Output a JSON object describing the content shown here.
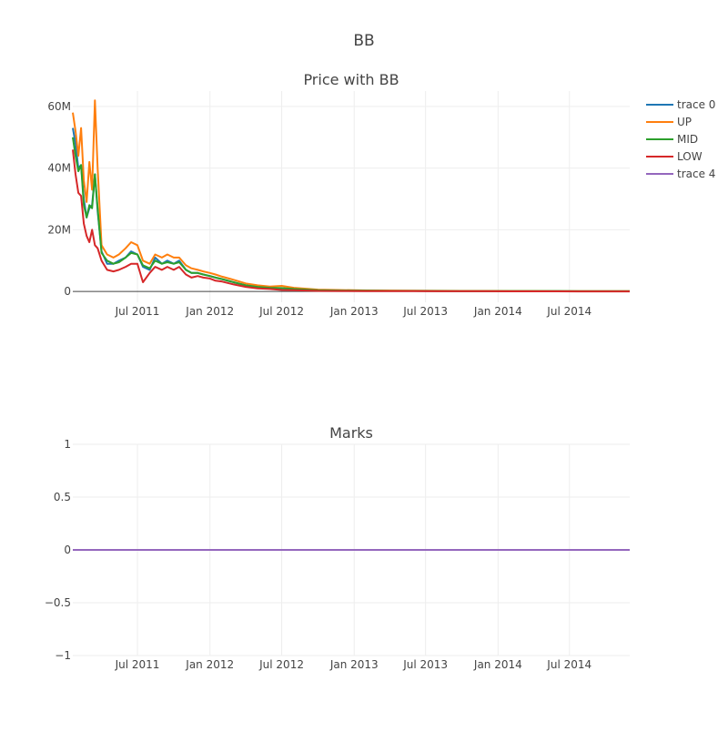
{
  "figure": {
    "title": "BB"
  },
  "chart_data": [
    {
      "type": "line",
      "title": "Price with BB",
      "xlabel": "",
      "ylabel": "",
      "x_tick_labels": [
        "Jul 2011",
        "Jan 2012",
        "Jul 2012",
        "Jan 2013",
        "Jul 2013",
        "Jan 2014",
        "Jul 2014"
      ],
      "x_ticks": [
        "2011-07-01",
        "2012-01-01",
        "2012-07-01",
        "2013-01-01",
        "2013-07-01",
        "2014-01-01",
        "2014-07-01"
      ],
      "xlim": [
        "2011-01-18",
        "2014-12-01"
      ],
      "y_tick_labels": [
        "0",
        "20M",
        "40M",
        "60M"
      ],
      "y_ticks": [
        0,
        20000000,
        40000000,
        60000000
      ],
      "ylim": [
        -3500000,
        65000000
      ],
      "grid": true,
      "legend": "top-right",
      "series": [
        {
          "name": "trace 0",
          "color": "#1f77b4",
          "x": [
            "2011-01-18",
            "2011-01-25",
            "2011-02-01",
            "2011-02-08",
            "2011-02-15",
            "2011-02-22",
            "2011-03-01",
            "2011-03-08",
            "2011-03-15",
            "2011-03-22",
            "2011-04-01",
            "2011-04-15",
            "2011-05-01",
            "2011-05-15",
            "2011-06-01",
            "2011-06-15",
            "2011-07-01",
            "2011-07-15",
            "2011-08-01",
            "2011-08-15",
            "2011-09-01",
            "2011-09-15",
            "2011-10-01",
            "2011-10-15",
            "2011-11-01",
            "2011-11-15",
            "2011-12-01",
            "2011-12-15",
            "2012-01-01",
            "2012-01-15",
            "2012-02-01",
            "2012-03-01",
            "2012-04-01",
            "2012-05-01",
            "2012-06-01",
            "2012-07-01",
            "2012-08-01",
            "2012-09-01",
            "2012-10-01",
            "2012-12-01",
            "2013-02-01",
            "2013-04-01",
            "2013-06-01",
            "2013-08-01",
            "2013-10-01",
            "2013-12-01",
            "2014-02-01",
            "2014-04-01",
            "2014-06-01",
            "2014-08-01",
            "2014-10-01",
            "2014-12-01"
          ],
          "y": [
            53000000,
            48000000,
            40000000,
            41000000,
            30000000,
            24000000,
            27000000,
            28000000,
            38000000,
            26000000,
            13000000,
            9000000,
            9000000,
            10000000,
            11000000,
            13000000,
            12000000,
            8000000,
            7000000,
            11000000,
            9000000,
            10000000,
            9000000,
            10000000,
            7000000,
            6000000,
            6000000,
            5500000,
            5000000,
            4500000,
            4000000,
            3000000,
            2000000,
            1500000,
            1200000,
            1000000,
            800000,
            600000,
            400000,
            300000,
            250000,
            200000,
            180000,
            150000,
            130000,
            120000,
            110000,
            100000,
            90000,
            80000,
            70000,
            60000
          ]
        },
        {
          "name": "UP",
          "color": "#ff7f0e",
          "x": [
            "2011-01-18",
            "2011-01-25",
            "2011-02-01",
            "2011-02-08",
            "2011-02-15",
            "2011-02-22",
            "2011-03-01",
            "2011-03-08",
            "2011-03-15",
            "2011-03-22",
            "2011-04-01",
            "2011-04-15",
            "2011-05-01",
            "2011-05-15",
            "2011-06-01",
            "2011-06-15",
            "2011-07-01",
            "2011-07-15",
            "2011-08-01",
            "2011-08-15",
            "2011-09-01",
            "2011-09-15",
            "2011-10-01",
            "2011-10-15",
            "2011-11-01",
            "2011-11-15",
            "2011-12-01",
            "2011-12-15",
            "2012-01-01",
            "2012-01-15",
            "2012-02-01",
            "2012-03-01",
            "2012-04-01",
            "2012-05-01",
            "2012-06-01",
            "2012-07-01",
            "2012-08-01",
            "2012-09-01",
            "2012-10-01",
            "2012-12-01",
            "2013-02-01",
            "2013-04-01",
            "2013-06-01",
            "2013-08-01",
            "2013-10-01",
            "2013-12-01",
            "2014-02-01",
            "2014-04-01",
            "2014-06-01",
            "2014-08-01",
            "2014-10-01",
            "2014-12-01"
          ],
          "y": [
            58000000,
            52000000,
            44000000,
            53000000,
            36000000,
            29000000,
            42000000,
            33000000,
            62000000,
            40000000,
            15000000,
            12000000,
            11000000,
            12000000,
            14000000,
            16000000,
            15000000,
            10000000,
            9000000,
            12000000,
            11000000,
            12000000,
            11000000,
            11000000,
            8500000,
            7500000,
            7000000,
            6500000,
            6000000,
            5500000,
            4800000,
            3800000,
            2600000,
            2000000,
            1600000,
            1800000,
            1200000,
            900000,
            600000,
            450000,
            350000,
            300000,
            250000,
            220000,
            200000,
            180000,
            160000,
            150000,
            140000,
            120000,
            110000,
            100000
          ]
        },
        {
          "name": "MID",
          "color": "#2ca02c",
          "x": [
            "2011-01-18",
            "2011-01-25",
            "2011-02-01",
            "2011-02-08",
            "2011-02-15",
            "2011-02-22",
            "2011-03-01",
            "2011-03-08",
            "2011-03-15",
            "2011-03-22",
            "2011-04-01",
            "2011-04-15",
            "2011-05-01",
            "2011-05-15",
            "2011-06-01",
            "2011-06-15",
            "2011-07-01",
            "2011-07-15",
            "2011-08-01",
            "2011-08-15",
            "2011-09-01",
            "2011-09-15",
            "2011-10-01",
            "2011-10-15",
            "2011-11-01",
            "2011-11-15",
            "2011-12-01",
            "2011-12-15",
            "2012-01-01",
            "2012-01-15",
            "2012-02-01",
            "2012-03-01",
            "2012-04-01",
            "2012-05-01",
            "2012-06-01",
            "2012-07-01",
            "2012-08-01",
            "2012-09-01",
            "2012-10-01",
            "2012-12-01",
            "2013-02-01",
            "2013-04-01",
            "2013-06-01",
            "2013-08-01",
            "2013-10-01",
            "2013-12-01",
            "2014-02-01",
            "2014-04-01",
            "2014-06-01",
            "2014-08-01",
            "2014-10-01",
            "2014-12-01"
          ],
          "y": [
            50000000,
            44000000,
            39000000,
            41000000,
            28000000,
            24000000,
            28000000,
            27000000,
            38000000,
            27000000,
            12500000,
            10000000,
            9000000,
            9500000,
            11000000,
            12500000,
            12000000,
            8500000,
            7500000,
            10000000,
            9000000,
            9500000,
            9000000,
            9500000,
            7000000,
            6000000,
            6000000,
            5500000,
            5000000,
            4500000,
            4000000,
            3000000,
            2000000,
            1500000,
            1200000,
            1100000,
            800000,
            600000,
            400000,
            300000,
            250000,
            200000,
            180000,
            150000,
            130000,
            120000,
            110000,
            100000,
            90000,
            80000,
            70000,
            60000
          ]
        },
        {
          "name": "LOW",
          "color": "#d62728",
          "x": [
            "2011-01-18",
            "2011-01-25",
            "2011-02-01",
            "2011-02-08",
            "2011-02-15",
            "2011-02-22",
            "2011-03-01",
            "2011-03-08",
            "2011-03-15",
            "2011-03-22",
            "2011-04-01",
            "2011-04-15",
            "2011-05-01",
            "2011-05-15",
            "2011-06-01",
            "2011-06-15",
            "2011-07-01",
            "2011-07-15",
            "2011-08-01",
            "2011-08-15",
            "2011-09-01",
            "2011-09-15",
            "2011-10-01",
            "2011-10-15",
            "2011-11-01",
            "2011-11-15",
            "2011-12-01",
            "2011-12-15",
            "2012-01-01",
            "2012-01-15",
            "2012-02-01",
            "2012-03-01",
            "2012-04-01",
            "2012-05-01",
            "2012-06-01",
            "2012-07-01",
            "2012-08-01",
            "2012-09-01",
            "2012-10-01",
            "2012-12-01",
            "2013-02-01",
            "2013-04-01",
            "2013-06-01",
            "2013-08-01",
            "2013-10-01",
            "2013-12-01",
            "2014-02-01",
            "2014-04-01",
            "2014-06-01",
            "2014-08-01",
            "2014-10-01",
            "2014-12-01"
          ],
          "y": [
            46000000,
            38000000,
            32000000,
            31000000,
            22000000,
            18000000,
            16000000,
            20000000,
            15000000,
            14000000,
            10000000,
            7000000,
            6500000,
            7000000,
            8000000,
            9000000,
            9000000,
            3000000,
            6000000,
            8000000,
            7000000,
            8000000,
            7000000,
            8000000,
            5500000,
            4500000,
            5000000,
            4500000,
            4200000,
            3500000,
            3200000,
            2300000,
            1500000,
            1000000,
            800000,
            500000,
            400000,
            300000,
            200000,
            150000,
            120000,
            100000,
            90000,
            80000,
            70000,
            60000,
            50000,
            40000,
            30000,
            25000,
            20000,
            15000
          ]
        }
      ]
    },
    {
      "type": "line",
      "title": "Marks",
      "xlabel": "",
      "ylabel": "",
      "x_tick_labels": [
        "Jul 2011",
        "Jan 2012",
        "Jul 2012",
        "Jan 2013",
        "Jul 2013",
        "Jan 2014",
        "Jul 2014"
      ],
      "x_ticks": [
        "2011-07-01",
        "2012-01-01",
        "2012-07-01",
        "2013-01-01",
        "2013-07-01",
        "2014-01-01",
        "2014-07-01"
      ],
      "xlim": [
        "2011-01-18",
        "2014-12-01"
      ],
      "y_tick_labels": [
        "1",
        "0.5",
        "0",
        "−0.5",
        "−1"
      ],
      "y_ticks": [
        1,
        0.5,
        0,
        -0.5,
        -1
      ],
      "ylim": [
        -1,
        1
      ],
      "grid": true,
      "series": [
        {
          "name": "trace 4",
          "color": "#9467bd",
          "x": [
            "2011-01-18",
            "2014-12-01"
          ],
          "y": [
            0,
            0
          ]
        }
      ]
    }
  ]
}
